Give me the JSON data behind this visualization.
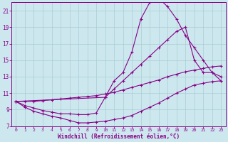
{
  "xlabel": "Windchill (Refroidissement éolien,°C)",
  "bg_color": "#cce8ee",
  "grid_color": "#aaccd4",
  "line_color": "#880088",
  "xlim": [
    -0.5,
    23.5
  ],
  "ylim": [
    7,
    22
  ],
  "yticks": [
    7,
    9,
    11,
    13,
    15,
    17,
    19,
    21
  ],
  "xticks": [
    0,
    1,
    2,
    3,
    4,
    5,
    6,
    7,
    8,
    9,
    10,
    11,
    12,
    13,
    14,
    15,
    16,
    17,
    18,
    19,
    20,
    21,
    22,
    23
  ],
  "lines": [
    {
      "x": [
        0,
        1,
        2,
        3,
        4,
        5,
        6,
        7,
        8,
        9,
        10,
        11,
        12,
        13,
        14,
        15,
        16,
        17,
        18,
        19,
        20,
        21,
        22,
        23
      ],
      "y": [
        10.0,
        9.3,
        8.8,
        8.5,
        8.2,
        8.0,
        7.7,
        7.4,
        7.4,
        7.5,
        7.6,
        7.8,
        8.0,
        8.3,
        8.8,
        9.3,
        9.8,
        10.4,
        11.0,
        11.5,
        12.0,
        12.2,
        12.4,
        12.5
      ]
    },
    {
      "x": [
        0,
        1,
        2,
        3,
        4,
        5,
        6,
        7,
        8,
        9,
        10,
        11,
        12,
        13,
        14,
        15,
        16,
        17,
        18,
        19,
        20,
        21,
        22,
        23
      ],
      "y": [
        10.0,
        10.0,
        10.0,
        10.1,
        10.2,
        10.3,
        10.4,
        10.5,
        10.6,
        10.7,
        10.9,
        11.1,
        11.4,
        11.7,
        12.0,
        12.3,
        12.6,
        13.0,
        13.3,
        13.6,
        13.8,
        14.0,
        14.2,
        14.3
      ]
    },
    {
      "x": [
        0,
        1,
        2,
        3,
        4,
        5,
        6,
        7,
        8,
        9,
        10,
        11,
        12,
        13,
        14,
        15,
        16,
        17,
        18,
        19,
        20,
        21,
        22,
        23
      ],
      "y": [
        10.0,
        9.5,
        9.2,
        8.9,
        8.7,
        8.5,
        8.5,
        8.4,
        8.4,
        8.6,
        10.5,
        12.5,
        13.5,
        16.0,
        20.0,
        22.0,
        22.5,
        21.5,
        20.0,
        18.0,
        16.5,
        15.0,
        13.5,
        13.0
      ]
    },
    {
      "x": [
        0,
        10,
        11,
        12,
        13,
        14,
        15,
        16,
        17,
        18,
        19,
        20,
        21,
        22,
        23
      ],
      "y": [
        10.0,
        10.5,
        11.5,
        12.5,
        13.5,
        14.5,
        15.5,
        16.5,
        17.5,
        18.5,
        19.0,
        15.0,
        13.5,
        13.5,
        12.5
      ]
    }
  ]
}
